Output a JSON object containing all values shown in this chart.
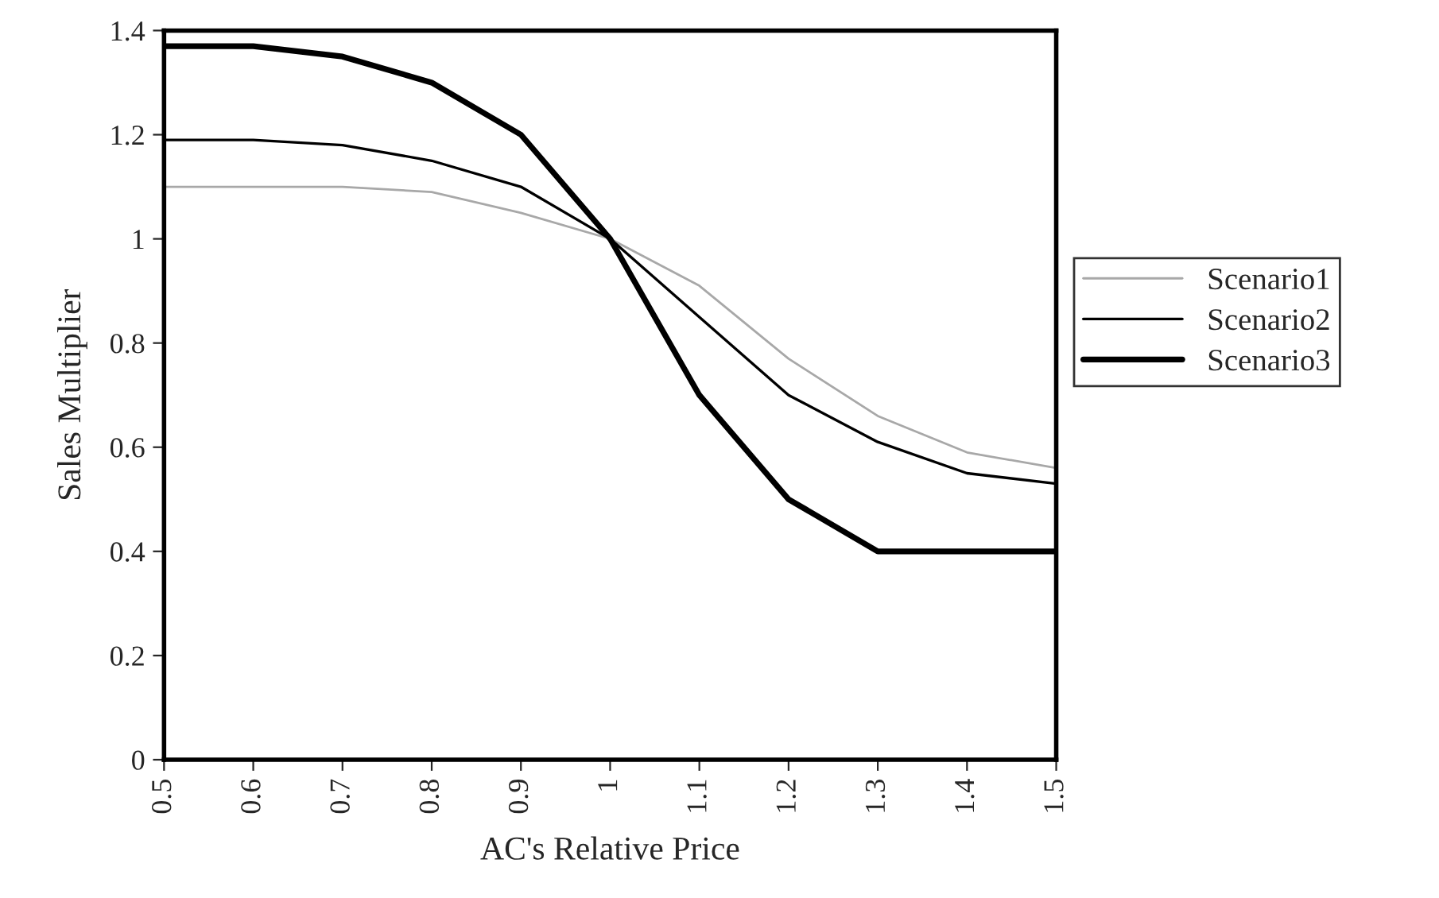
{
  "chart_data": {
    "type": "line",
    "xlabel": "AC's Relative Price",
    "ylabel": "Sales Multiplier",
    "x": [
      0.5,
      0.6,
      0.7,
      0.8,
      0.9,
      1,
      1.1,
      1.2,
      1.3,
      1.4,
      1.5
    ],
    "series": [
      {
        "name": "Scenario1",
        "color": "#a8a8a8",
        "values": [
          1.1,
          1.1,
          1.1,
          1.09,
          1.05,
          1.0,
          0.91,
          0.77,
          0.66,
          0.59,
          0.56
        ]
      },
      {
        "name": "Scenario2",
        "color": "#000000",
        "values": [
          1.19,
          1.19,
          1.18,
          1.15,
          1.1,
          1.0,
          0.85,
          0.7,
          0.61,
          0.55,
          0.53
        ]
      },
      {
        "name": "Scenario3",
        "color": "#000000",
        "values": [
          1.37,
          1.37,
          1.35,
          1.3,
          1.2,
          1.0,
          0.7,
          0.5,
          0.4,
          0.4,
          0.4
        ]
      }
    ],
    "xlim": [
      0.5,
      1.5
    ],
    "xticks": [
      0.5,
      0.6,
      0.7,
      0.8,
      0.9,
      1,
      1.1,
      1.2,
      1.3,
      1.4,
      1.5
    ],
    "ylim": [
      0,
      1.4
    ],
    "yticks": [
      0,
      0.2,
      0.4,
      0.6,
      0.8,
      1,
      1.2,
      1.4
    ],
    "grid": false,
    "legend": "right",
    "marker": "none",
    "line_style": "solid"
  }
}
